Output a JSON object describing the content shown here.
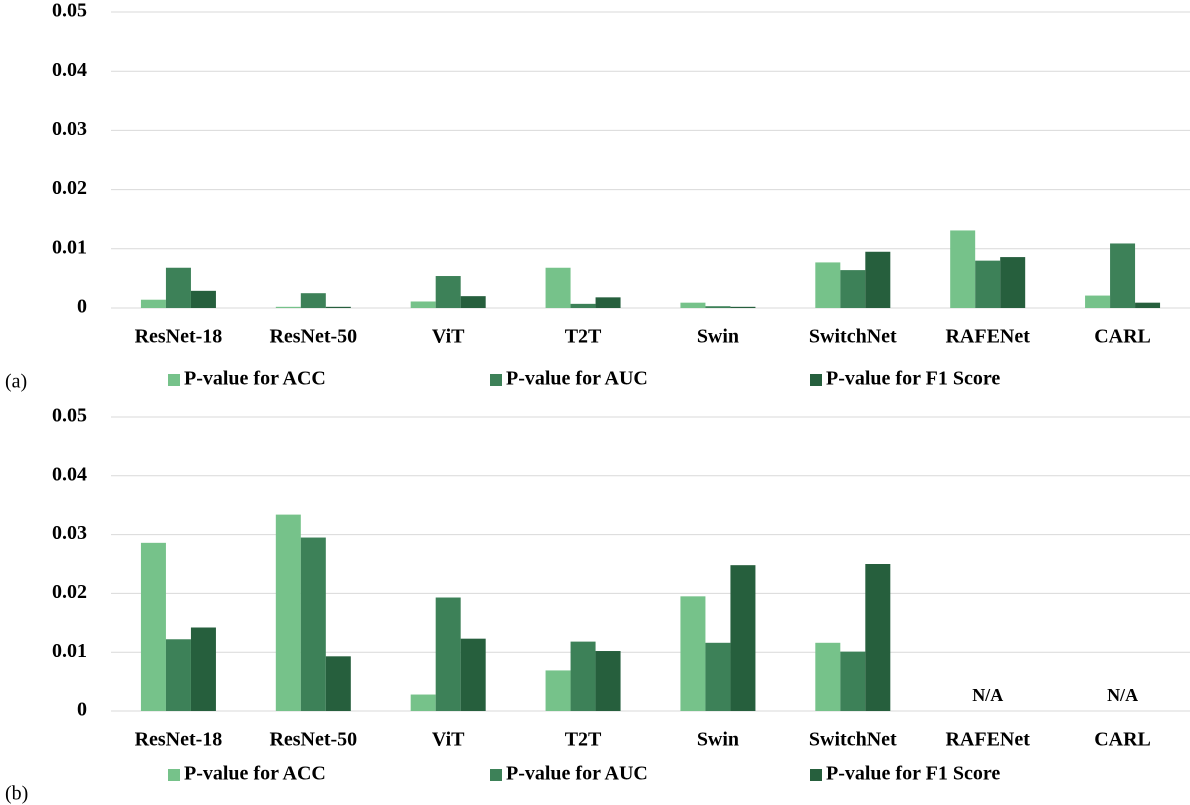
{
  "chart_data": [
    {
      "type": "bar",
      "panel_label": "(a)",
      "categories": [
        "ResNet-18",
        "ResNet-50",
        "ViT",
        "T2T",
        "Swin",
        "SwitchNet",
        "RAFENet",
        "CARL"
      ],
      "series": [
        {
          "name": "P-value for ACC",
          "color": "#76c28a",
          "values": [
            0.0014,
            0.0002,
            0.0011,
            0.0068,
            0.0009,
            0.0077,
            0.0131,
            0.0021
          ]
        },
        {
          "name": "P-value for AUC",
          "color": "#3d8158",
          "values": [
            0.0068,
            0.0025,
            0.0054,
            0.0007,
            0.0003,
            0.0064,
            0.008,
            0.0109
          ]
        },
        {
          "name": "P-value for F1 Score",
          "color": "#265f3d",
          "values": [
            0.0029,
            0.0002,
            0.002,
            0.0018,
            0.0002,
            0.0095,
            0.0086,
            0.0009
          ]
        }
      ],
      "ylim": [
        0,
        0.05
      ],
      "yticks": [
        0,
        0.01,
        0.02,
        0.03,
        0.04,
        0.05
      ],
      "grid": true,
      "legend": "bottom"
    },
    {
      "type": "bar",
      "panel_label": "(b)",
      "categories": [
        "ResNet-18",
        "ResNet-50",
        "ViT",
        "T2T",
        "Swin",
        "SwitchNet",
        "RAFENet",
        "CARL"
      ],
      "series": [
        {
          "name": "P-value for ACC",
          "color": "#76c28a",
          "values": [
            0.0286,
            0.0334,
            0.0028,
            0.0069,
            0.0195,
            0.0116,
            null,
            null
          ]
        },
        {
          "name": "P-value for AUC",
          "color": "#3d8158",
          "values": [
            0.0122,
            0.0295,
            0.0193,
            0.0118,
            0.0116,
            0.0101,
            null,
            null
          ]
        },
        {
          "name": "P-value for F1 Score",
          "color": "#265f3d",
          "values": [
            0.0142,
            0.0093,
            0.0123,
            0.0102,
            0.0248,
            0.025,
            null,
            null
          ]
        }
      ],
      "annotations": [
        {
          "category": "RAFENet",
          "text": "N/A"
        },
        {
          "category": "CARL",
          "text": "N/A"
        }
      ],
      "ylim": [
        0,
        0.05
      ],
      "yticks": [
        0,
        0.01,
        0.02,
        0.03,
        0.04,
        0.05
      ],
      "grid": true,
      "legend": "bottom"
    }
  ]
}
